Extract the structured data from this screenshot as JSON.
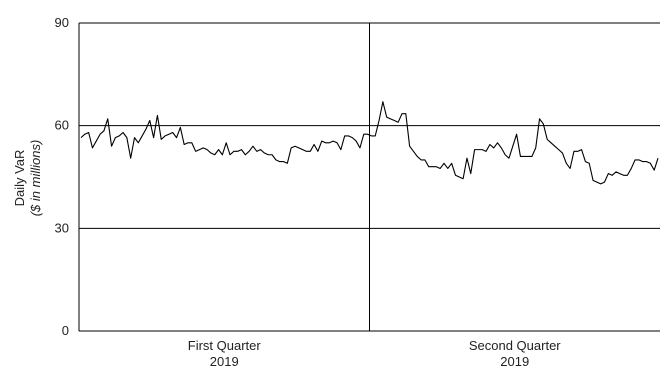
{
  "chart_data": {
    "type": "line",
    "title": "",
    "ylabel": "Daily VaR",
    "ylabel_unit": "($ in millions)",
    "ylim": [
      0,
      90
    ],
    "yticks": [
      0,
      30,
      60,
      90
    ],
    "grid": "horizontal",
    "periods": [
      {
        "label": "First Quarter",
        "year": "2019"
      },
      {
        "label": "Second Quarter",
        "year": "2019"
      }
    ],
    "series": [
      {
        "values": [
          56.5,
          57.5,
          58,
          53.5,
          55.5,
          57.5,
          58.5,
          62,
          54,
          56.5,
          57,
          58,
          56.5,
          50.5,
          56.5,
          55,
          57,
          59,
          61.5,
          56.5,
          63,
          56,
          57,
          57.5,
          58,
          56.5,
          59.5,
          54.5,
          55,
          55,
          52.5,
          53,
          53.5,
          53,
          52,
          51.5,
          53,
          51.5,
          55,
          51.5,
          52.5,
          52.5,
          53,
          51.5,
          52.5,
          54,
          52.5,
          53,
          52,
          51.5,
          51.5,
          50,
          49.5,
          49.5,
          49,
          53.5,
          54,
          53.5,
          53,
          52.5,
          52.5,
          54.5,
          52.5,
          55.5,
          55,
          55,
          55.5,
          55,
          53,
          57,
          57,
          56.5,
          55.5,
          53.5,
          57.5,
          57.5,
          57,
          57,
          61.5,
          67,
          62.5,
          62,
          61.5,
          61,
          63.5,
          63.5,
          54,
          52.5,
          51,
          50,
          50,
          48,
          48,
          48,
          47.5,
          49,
          47.5,
          49,
          45.5,
          45,
          44.5,
          50.5,
          46,
          53,
          53,
          53,
          52.5,
          54.5,
          53.5,
          55,
          53.5,
          51.5,
          50.5,
          54,
          57.5,
          51,
          51,
          51,
          51,
          53.5,
          62,
          60.5,
          56,
          55,
          54,
          53,
          52,
          49,
          47.5,
          52.5,
          52.5,
          53,
          49.5,
          49,
          44,
          43.5,
          43,
          43.5,
          46,
          45.5,
          46.5,
          46,
          45.5,
          45.5,
          47.5,
          50,
          50,
          49.5,
          49.5,
          49,
          47,
          50.5
        ]
      }
    ]
  }
}
